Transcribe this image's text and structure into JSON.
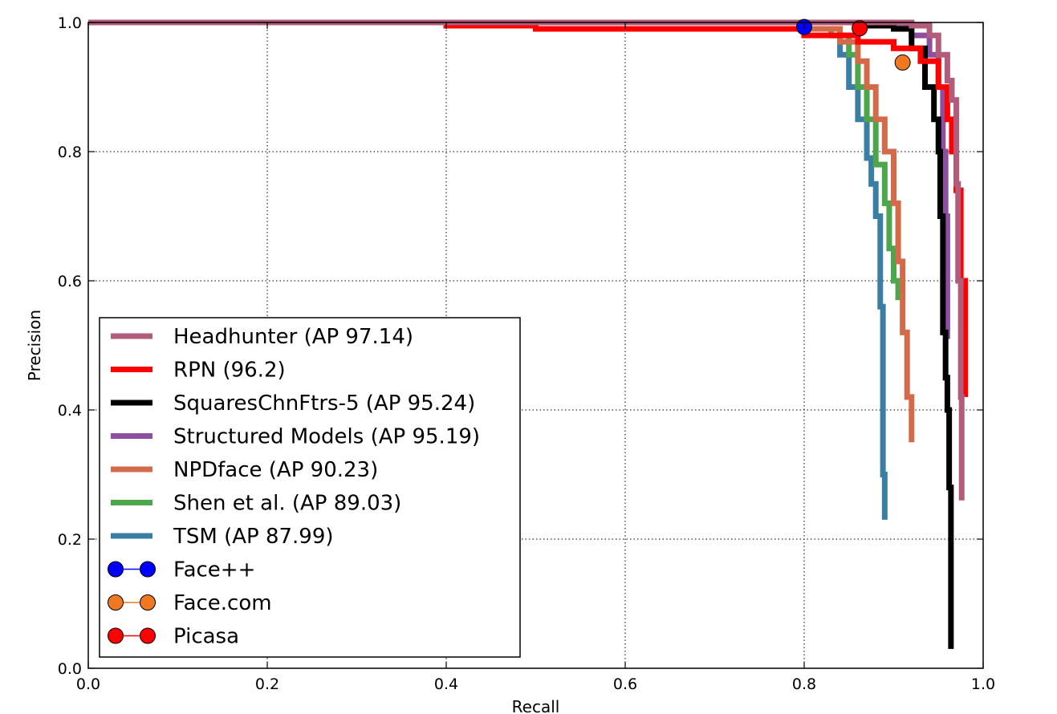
{
  "chart_data": {
    "type": "line",
    "title": "",
    "xlabel": "Recall",
    "ylabel": "Precision",
    "xlim": [
      0.0,
      1.0
    ],
    "ylim": [
      0.0,
      1.0
    ],
    "xticks": [
      "0.0",
      "0.2",
      "0.4",
      "0.6",
      "0.8",
      "1.0"
    ],
    "yticks": [
      "0.0",
      "0.2",
      "0.4",
      "0.6",
      "0.8",
      "1.0"
    ],
    "grid": true,
    "legend_position": "lower-left",
    "series": [
      {
        "name": "Headhunter (AP 97.14)",
        "color": "#b05c7a",
        "x": [
          0.0,
          0.9,
          0.92,
          0.94,
          0.95,
          0.96,
          0.965,
          0.97,
          0.972,
          0.975,
          0.976
        ],
        "y": [
          1.0,
          1.0,
          0.995,
          0.98,
          0.95,
          0.91,
          0.88,
          0.75,
          0.6,
          0.42,
          0.26
        ]
      },
      {
        "name": "RPN (96.2)",
        "color": "#ff0000",
        "x": [
          0.0,
          0.4,
          0.5,
          0.7,
          0.8,
          0.86,
          0.9,
          0.93,
          0.95,
          0.96,
          0.965,
          0.97,
          0.975,
          0.98
        ],
        "y": [
          1.0,
          0.995,
          0.99,
          0.99,
          0.98,
          0.97,
          0.96,
          0.94,
          0.9,
          0.85,
          0.8,
          0.74,
          0.6,
          0.42
        ]
      },
      {
        "name": "SquaresChnFtrs-5 (AP 95.24)",
        "color": "#000000",
        "x": [
          0.0,
          0.86,
          0.9,
          0.92,
          0.935,
          0.945,
          0.95,
          0.952,
          0.955,
          0.958,
          0.96,
          0.962,
          0.964
        ],
        "y": [
          1.0,
          0.995,
          0.99,
          0.96,
          0.9,
          0.85,
          0.8,
          0.7,
          0.52,
          0.45,
          0.4,
          0.28,
          0.03
        ]
      },
      {
        "name": "Structured Models (AP 95.19)",
        "color": "#8e4fa0",
        "x": [
          0.0,
          0.88,
          0.92,
          0.94,
          0.95,
          0.955,
          0.958,
          0.96
        ],
        "y": [
          1.0,
          0.995,
          0.98,
          0.95,
          0.9,
          0.8,
          0.7,
          0.51
        ]
      },
      {
        "name": "NPDface (AP 90.23)",
        "color": "#d36b4a",
        "x": [
          0.0,
          0.8,
          0.84,
          0.86,
          0.87,
          0.88,
          0.89,
          0.9,
          0.905,
          0.91,
          0.915,
          0.92
        ],
        "y": [
          1.0,
          0.99,
          0.97,
          0.94,
          0.9,
          0.85,
          0.8,
          0.72,
          0.63,
          0.52,
          0.42,
          0.35
        ]
      },
      {
        "name": "Shen et al. (AP 89.03)",
        "color": "#4ca64c",
        "x": [
          0.0,
          0.8,
          0.83,
          0.85,
          0.86,
          0.87,
          0.88,
          0.89,
          0.895,
          0.9,
          0.905
        ],
        "y": [
          1.0,
          0.99,
          0.98,
          0.95,
          0.9,
          0.85,
          0.78,
          0.72,
          0.65,
          0.6,
          0.57
        ]
      },
      {
        "name": "TSM (AP 87.99)",
        "color": "#3a7fa3",
        "x": [
          0.0,
          0.8,
          0.83,
          0.84,
          0.85,
          0.86,
          0.87,
          0.875,
          0.88,
          0.885,
          0.888,
          0.89
        ],
        "y": [
          1.0,
          0.99,
          0.98,
          0.95,
          0.9,
          0.85,
          0.79,
          0.75,
          0.7,
          0.56,
          0.3,
          0.23
        ]
      }
    ],
    "points": [
      {
        "name": "Face++",
        "color": "#0000ff",
        "x": 0.8,
        "y": 0.993
      },
      {
        "name": "Face.com",
        "color": "#f07820",
        "x": 0.91,
        "y": 0.938
      },
      {
        "name": "Picasa",
        "color": "#ff0000",
        "x": 0.862,
        "y": 0.991
      }
    ]
  }
}
